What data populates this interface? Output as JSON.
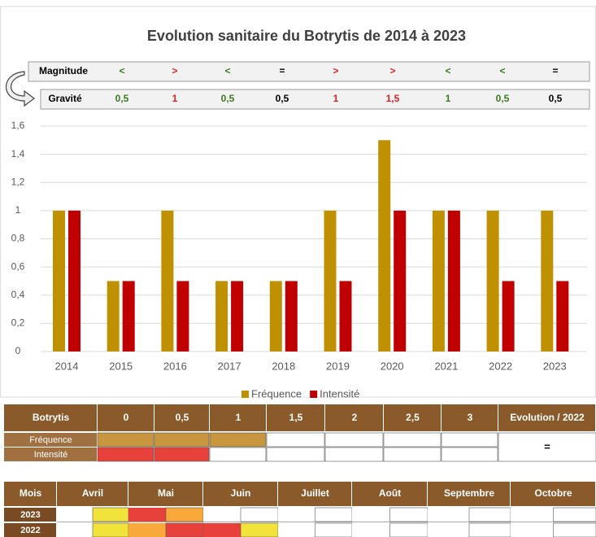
{
  "chart_data": {
    "type": "bar",
    "title": "Evolution sanitaire du Botrytis de 2014 à 2023",
    "categories": [
      "2014",
      "2015",
      "2016",
      "2017",
      "2018",
      "2019",
      "2020",
      "2021",
      "2022",
      "2023"
    ],
    "series": [
      {
        "name": "Fréquence",
        "color": "#bf9000",
        "values": [
          1,
          0.5,
          1,
          0.5,
          0.5,
          1,
          1.5,
          1,
          1,
          1
        ]
      },
      {
        "name": "Intensité",
        "color": "#c00000",
        "values": [
          1,
          0.5,
          0.5,
          0.5,
          0.5,
          0.5,
          1,
          1,
          0.5,
          0.5
        ]
      }
    ],
    "ylim": [
      0,
      1.6
    ],
    "yticks": [
      0,
      {
        "value": 0.2,
        "label": "0,2"
      },
      {
        "value": 0.4,
        "label": "0,4"
      },
      {
        "value": 0.6,
        "label": "0,6"
      },
      {
        "value": 0.8,
        "label": "0,8"
      },
      1,
      {
        "value": 1.2,
        "label": "1,2"
      },
      {
        "value": 1.4,
        "label": "1,4"
      },
      {
        "value": 1.6,
        "label": "1,6"
      }
    ],
    "grid": true,
    "legend": "bottom"
  },
  "magnitude": {
    "label": "Magnitude",
    "items": [
      "<",
      ">",
      "<",
      "=",
      ">",
      ">",
      "<",
      "<",
      "="
    ],
    "colors": [
      "#3a7a1e",
      "#e02020",
      "#3a7a1e",
      "#000000",
      "#e02020",
      "#e02020",
      "#3a7a1e",
      "#3a7a1e",
      "#000000"
    ]
  },
  "gravite": {
    "label": "Gravité",
    "items": [
      "0,5",
      "1",
      "0,5",
      "0,5",
      "1",
      "1,5",
      "1",
      "0,5",
      "0,5"
    ],
    "colors": [
      "#3a7a1e",
      "#e02020",
      "#3a7a1e",
      "#000000",
      "#e02020",
      "#e02020",
      "#3a7a1e",
      "#3a7a1e",
      "#000000"
    ]
  },
  "scale_table": {
    "header": [
      "Botrytis",
      "0",
      "0,5",
      "1",
      "1,5",
      "2",
      "2,5",
      "3",
      "Evolution / 2022"
    ],
    "rows": [
      {
        "label": "Fréquence",
        "cells": [
          "#c8963e",
          "#c8963e",
          "#c8963e",
          "#ffffff",
          "#ffffff",
          "#ffffff",
          "#ffffff"
        ]
      },
      {
        "label": "Intensité",
        "cells": [
          "#e8413b",
          "#e8413b",
          "#ffffff",
          "#ffffff",
          "#ffffff",
          "#ffffff",
          "#ffffff"
        ]
      }
    ],
    "evolution": "="
  },
  "calendar": {
    "header": [
      "Mois",
      "Avril",
      "Mai",
      "Juin",
      "Juillet",
      "Août",
      "Septembre",
      "Octobre"
    ],
    "rows": [
      {
        "label": "2023",
        "cells": [
          "#ffffff",
          "#f2e33a",
          "#e8413b",
          "#f8a93a",
          "#ffffff",
          "#ffffff",
          "#ffffff",
          "#ffffff",
          "#ffffff",
          "#ffffff",
          "#ffffff",
          "#ffffff",
          "#ffffff",
          "#ffffff"
        ]
      },
      {
        "label": "2022",
        "cells": [
          "#ffffff",
          "#f2e33a",
          "#f8a93a",
          "#e8413b",
          "#e8413b",
          "#f2e33a",
          "#ffffff",
          "#ffffff",
          "#ffffff",
          "#ffffff",
          "#ffffff",
          "#ffffff",
          "#ffffff",
          "#ffffff"
        ]
      }
    ]
  }
}
